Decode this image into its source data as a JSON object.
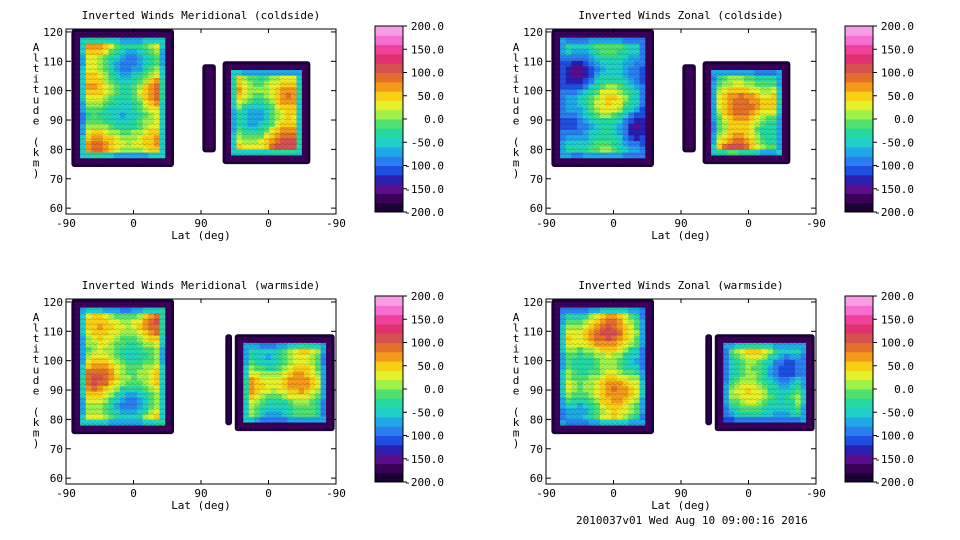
{
  "footer": "2010037v01 Wed Aug 10 09:00:16 2016",
  "colorbar_labels": [
    "200.0",
    "150.0",
    "100.0",
    "50.0",
    "0.0",
    "-50.0",
    "-100.0",
    "-150.0",
    "-200.0"
  ],
  "colormap": [
    "#1a0033",
    "#3a005a",
    "#5a0e8c",
    "#2a1fb0",
    "#1f4fe0",
    "#2a7ef0",
    "#1fa8e8",
    "#1fcfc8",
    "#25d7a0",
    "#4fe070",
    "#9ef04a",
    "#e6f02a",
    "#f7cf14",
    "#f39a1a",
    "#e2702a",
    "#d65050",
    "#e03070",
    "#f0409a",
    "#f66fcf",
    "#f89ee6"
  ],
  "chart_data": [
    {
      "type": "heatmap",
      "title": "Inverted Winds Meridional (coldside)",
      "xlabel": "Lat (deg)",
      "ylabel": "Altitude (km)",
      "xticklabels": [
        "-90",
        "0",
        "90",
        "0",
        "-90"
      ],
      "yticks": [
        60,
        70,
        80,
        90,
        100,
        110,
        120
      ],
      "ylim": [
        58,
        121
      ],
      "colorbar_range": [
        -200,
        200
      ],
      "regions": [
        {
          "lat_range": [
            "-88",
            "50"
          ],
          "alt_range": [
            74,
            121
          ],
          "dominant_value": 0
        },
        {
          "lat_range": [
            "87",
            "85"
          ],
          "alt_range": [
            79,
            109
          ],
          "dominant_value": 20
        },
        {
          "lat_range": [
            "60",
            "-60"
          ],
          "alt_range": [
            75,
            110
          ],
          "dominant_value": 20
        }
      ]
    },
    {
      "type": "heatmap",
      "title": "Inverted Winds Zonal (coldside)",
      "xlabel": "Lat (deg)",
      "ylabel": "Altitude (km)",
      "xticklabels": [
        "-90",
        "0",
        "90",
        "0",
        "-90"
      ],
      "yticks": [
        60,
        70,
        80,
        90,
        100,
        110,
        120
      ],
      "ylim": [
        58,
        121
      ],
      "colorbar_range": [
        -200,
        200
      ],
      "regions": [
        {
          "lat_range": [
            "-88",
            "50"
          ],
          "alt_range": [
            74,
            121
          ],
          "dominant_value": -50
        },
        {
          "lat_range": [
            "87",
            "85"
          ],
          "alt_range": [
            79,
            109
          ],
          "dominant_value": -30
        },
        {
          "lat_range": [
            "60",
            "-60"
          ],
          "alt_range": [
            75,
            110
          ],
          "dominant_value": 30
        }
      ]
    },
    {
      "type": "heatmap",
      "title": "Inverted Winds Meridional (warmside)",
      "xlabel": "Lat (deg)",
      "ylabel": "Altitude (km)",
      "xticklabels": [
        "-90",
        "0",
        "90",
        "0",
        "-90"
      ],
      "yticks": [
        60,
        70,
        80,
        90,
        100,
        110,
        120
      ],
      "ylim": [
        58,
        121
      ],
      "colorbar_range": [
        -200,
        200
      ],
      "regions": [
        {
          "lat_range": [
            "-88",
            "50"
          ],
          "alt_range": [
            75,
            121
          ],
          "dominant_value": 10
        },
        {
          "lat_range": [
            "67",
            "64"
          ],
          "alt_range": [
            78,
            109
          ],
          "dominant_value": -10
        },
        {
          "lat_range": [
            "60",
            "-90"
          ],
          "alt_range": [
            76,
            109
          ],
          "dominant_value": 10
        }
      ]
    },
    {
      "type": "heatmap",
      "title": "Inverted Winds Zonal (warmside)",
      "xlabel": "Lat (deg)",
      "ylabel": "Altitude (km)",
      "xticklabels": [
        "-90",
        "0",
        "90",
        "0",
        "-90"
      ],
      "yticks": [
        60,
        70,
        80,
        90,
        100,
        110,
        120
      ],
      "ylim": [
        58,
        121
      ],
      "colorbar_range": [
        -200,
        200
      ],
      "regions": [
        {
          "lat_range": [
            "-88",
            "50"
          ],
          "alt_range": [
            75,
            121
          ],
          "dominant_value": 20
        },
        {
          "lat_range": [
            "67",
            "64"
          ],
          "alt_range": [
            78,
            109
          ],
          "dominant_value": -30
        },
        {
          "lat_range": [
            "60",
            "-90"
          ],
          "alt_range": [
            76,
            109
          ],
          "dominant_value": -20
        }
      ]
    }
  ]
}
